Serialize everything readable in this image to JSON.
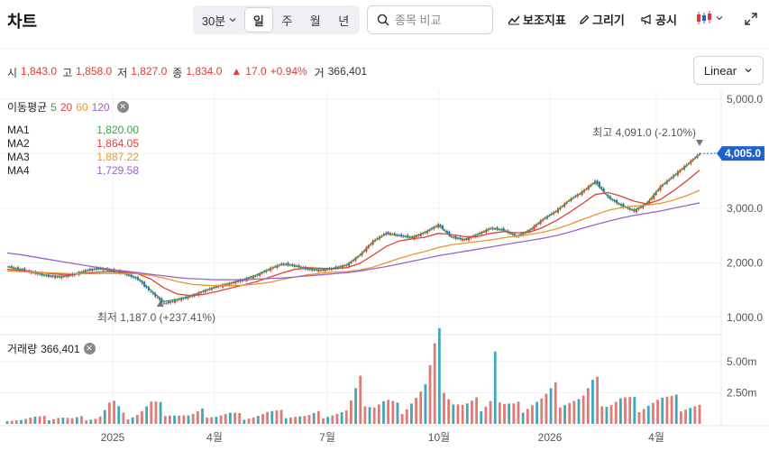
{
  "header": {
    "title": "차트",
    "period_label": "30분",
    "tabs": [
      {
        "label": "일",
        "active": true
      },
      {
        "label": "주",
        "active": false
      },
      {
        "label": "월",
        "active": false
      },
      {
        "label": "년",
        "active": false
      }
    ],
    "search_placeholder": "종목 비교",
    "tools": [
      {
        "label": "보조지표",
        "icon": "indicator-icon"
      },
      {
        "label": "그리기",
        "icon": "pencil-icon"
      },
      {
        "label": "공시",
        "icon": "megaphone-icon"
      }
    ]
  },
  "ohlc": {
    "open_label": "시",
    "open": "1,843.0",
    "high_label": "고",
    "high": "1,858.0",
    "low_label": "저",
    "low": "1,827.0",
    "close_label": "종",
    "close": "1,834.0",
    "change": "17.0",
    "change_pct": "+0.94%",
    "volume_label": "거",
    "volume": "366,401"
  },
  "scale_select": "Linear",
  "ma_legend": {
    "title": "이동평균",
    "periods": [
      {
        "label": "5",
        "color": "#3aa346"
      },
      {
        "label": "20",
        "color": "#e0413a"
      },
      {
        "label": "60",
        "color": "#e8962e"
      },
      {
        "label": "120",
        "color": "#9a63c9"
      }
    ],
    "rows": [
      {
        "name": "MA1",
        "value": "1,820.00",
        "color": "#3aa346"
      },
      {
        "name": "MA2",
        "value": "1,864.05",
        "color": "#e0413a"
      },
      {
        "name": "MA3",
        "value": "1,887.22",
        "color": "#e8962e"
      },
      {
        "name": "MA4",
        "value": "1,729.58",
        "color": "#9a63c9"
      }
    ]
  },
  "volume_legend": {
    "label": "거래량",
    "value": "366,401"
  },
  "chart_data": {
    "type": "line",
    "price_axis": {
      "ticks": [
        "5,000.0",
        "4,000.0",
        "3,000.0",
        "2,000.0",
        "1,000.0"
      ],
      "ylim": [
        700,
        5000
      ]
    },
    "volume_axis": {
      "ticks": [
        "5.00m",
        "2.50m"
      ],
      "ylim": [
        0,
        6.5
      ]
    },
    "x_ticks": [
      "2025",
      "4월",
      "7월",
      "10월",
      "2026",
      "4월"
    ],
    "current_price": "4,005.0",
    "high_annotation": {
      "label": "최고",
      "value": "4,091.0 (-2.10%)"
    },
    "low_annotation": {
      "label": "최저",
      "value": "1,187.0 (+237.41%)"
    },
    "price_series": [
      1930,
      1880,
      1820,
      1760,
      1740,
      1780,
      1860,
      1900,
      1860,
      1800,
      1700,
      1460,
      1250,
      1320,
      1380,
      1480,
      1560,
      1620,
      1680,
      1760,
      1880,
      1980,
      1950,
      1880,
      1860,
      1900,
      1960,
      2150,
      2400,
      2550,
      2500,
      2460,
      2560,
      2700,
      2470,
      2420,
      2520,
      2640,
      2600,
      2480,
      2600,
      2800,
      2950,
      3150,
      3300,
      3500,
      3200,
      3050,
      2950,
      3100,
      3400,
      3600,
      3800,
      4005
    ],
    "ma_series": {
      "MA1": [
        1930,
        1880,
        1820,
        1770,
        1750,
        1780,
        1850,
        1890,
        1860,
        1800,
        1720,
        1500,
        1290,
        1330,
        1390,
        1480,
        1560,
        1620,
        1690,
        1770,
        1880,
        1970,
        1950,
        1890,
        1870,
        1900,
        1960,
        2140,
        2380,
        2530,
        2500,
        2470,
        2560,
        2690,
        2480,
        2430,
        2520,
        2630,
        2600,
        2490,
        2600,
        2790,
        2940,
        3140,
        3290,
        3480,
        3210,
        3060,
        2960,
        3100,
        3390,
        3580,
        3780,
        3990
      ],
      "MA2": [
        1880,
        1860,
        1840,
        1810,
        1790,
        1790,
        1810,
        1830,
        1840,
        1830,
        1800,
        1700,
        1540,
        1430,
        1400,
        1420,
        1470,
        1530,
        1590,
        1650,
        1730,
        1810,
        1880,
        1910,
        1900,
        1890,
        1910,
        1990,
        2140,
        2300,
        2400,
        2440,
        2470,
        2540,
        2520,
        2480,
        2480,
        2540,
        2570,
        2550,
        2560,
        2650,
        2770,
        2920,
        3080,
        3250,
        3290,
        3220,
        3130,
        3080,
        3160,
        3320,
        3500,
        3700
      ],
      "MA3": [
        1850,
        1840,
        1830,
        1820,
        1810,
        1800,
        1800,
        1800,
        1805,
        1805,
        1800,
        1770,
        1720,
        1660,
        1610,
        1590,
        1580,
        1580,
        1590,
        1610,
        1640,
        1690,
        1740,
        1780,
        1810,
        1830,
        1840,
        1870,
        1920,
        2000,
        2080,
        2150,
        2210,
        2280,
        2330,
        2360,
        2390,
        2420,
        2460,
        2490,
        2520,
        2560,
        2620,
        2700,
        2790,
        2880,
        2960,
        3010,
        3040,
        3060,
        3090,
        3150,
        3230,
        3330
      ],
      "MA4": [
        2180,
        2150,
        2110,
        2070,
        2030,
        1990,
        1950,
        1910,
        1880,
        1850,
        1820,
        1790,
        1760,
        1730,
        1710,
        1700,
        1690,
        1690,
        1690,
        1700,
        1710,
        1720,
        1740,
        1760,
        1780,
        1800,
        1820,
        1850,
        1890,
        1930,
        1980,
        2030,
        2080,
        2130,
        2170,
        2210,
        2250,
        2290,
        2330,
        2370,
        2410,
        2450,
        2500,
        2560,
        2630,
        2700,
        2760,
        2820,
        2870,
        2910,
        2950,
        3000,
        3050,
        3100
      ]
    },
    "volume_series": [
      0.4,
      0.35,
      0.5,
      0.45,
      0.6,
      0.4,
      0.5,
      0.55,
      1.8,
      0.5,
      0.9,
      1.6,
      1.2,
      0.8,
      0.6,
      0.9,
      0.7,
      0.8,
      0.6,
      0.7,
      0.9,
      0.8,
      0.7,
      0.6,
      0.8,
      0.9,
      1.0,
      2.8,
      1.6,
      1.8,
      1.2,
      2.2,
      2.9,
      5.8,
      2.0,
      1.4,
      1.6,
      2.4,
      1.5,
      1.2,
      1.8,
      2.0,
      2.5,
      2.2,
      2.0,
      2.9,
      1.8,
      2.0,
      1.6,
      1.9,
      2.0,
      1.7,
      1.6,
      1.5
    ]
  }
}
